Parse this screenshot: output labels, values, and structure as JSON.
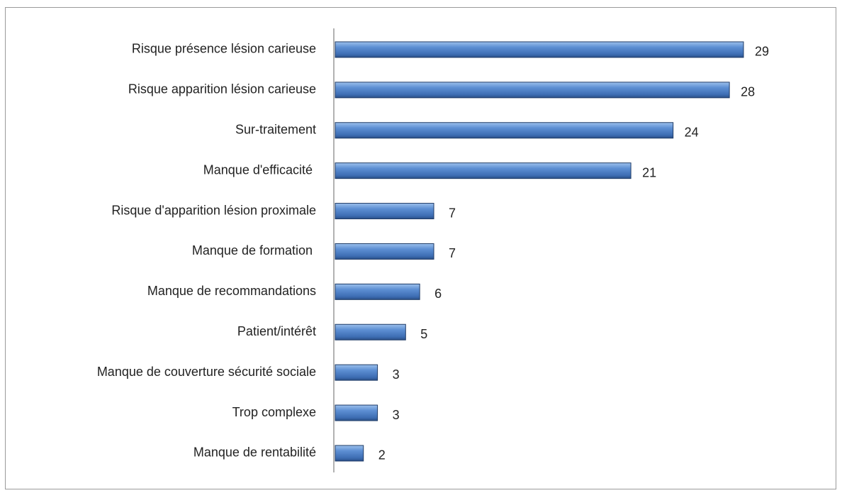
{
  "chart_data": {
    "type": "bar",
    "orientation": "horizontal",
    "categories": [
      "Risque présence lésion carieuse",
      "Risque apparition lésion carieuse",
      "Sur-traitement",
      "Manque d'efficacité ",
      "Risque d'apparition lésion proximale",
      "Manque de formation ",
      "Manque de recommandations",
      "Patient/intérêt",
      "Manque de couverture sécurité sociale",
      "Trop complexe",
      "Manque de rentabilité"
    ],
    "values": [
      29,
      28,
      24,
      21,
      7,
      7,
      6,
      5,
      3,
      3,
      2
    ],
    "color": "#4a7ebb"
  }
}
